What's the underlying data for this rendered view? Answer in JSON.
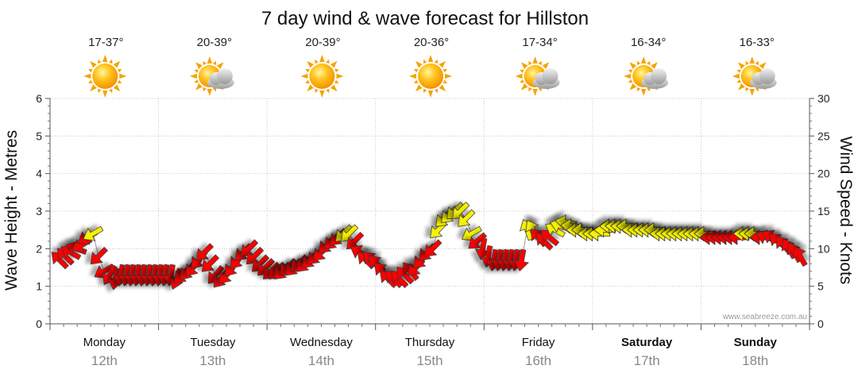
{
  "chart_data": {
    "type": "line",
    "title": "7 day wind & wave forecast for Hillston",
    "ylabel_left": "Wave Height - Metres",
    "ylabel_right": "Wind Speed - Knots",
    "ylim_left": [
      0,
      6
    ],
    "ylim_right": [
      0,
      30
    ],
    "yticks_left": [
      "0",
      "1",
      "2",
      "3",
      "4",
      "5",
      "6"
    ],
    "yticks_right": [
      "0",
      "5",
      "10",
      "15",
      "20",
      "25",
      "30"
    ],
    "grid": true,
    "credit": "www.seabreeze.com.au",
    "days": [
      {
        "name": "Monday",
        "date": "12th",
        "temp": "17-37°",
        "icon": "sun-icon",
        "bold": false
      },
      {
        "name": "Tuesday",
        "date": "13th",
        "temp": "20-39°",
        "icon": "sun-cloud-icon",
        "bold": false
      },
      {
        "name": "Wednesday",
        "date": "14th",
        "temp": "20-39°",
        "icon": "sun-icon",
        "bold": false
      },
      {
        "name": "Thursday",
        "date": "15th",
        "temp": "20-36°",
        "icon": "sun-icon",
        "bold": false
      },
      {
        "name": "Friday",
        "date": "16th",
        "temp": "17-34°",
        "icon": "sun-cloud-icon",
        "bold": false
      },
      {
        "name": "Saturday",
        "date": "17th",
        "temp": "16-34°",
        "icon": "sun-cloud-icon",
        "bold": true
      },
      {
        "name": "Sunday",
        "date": "18th",
        "temp": "16-33°",
        "icon": "sun-cloud-icon",
        "bold": true
      }
    ],
    "wind_speed_knots": [
      8.5,
      9.0,
      9.5,
      10.0,
      10.5,
      11.5,
      12.0,
      9.0,
      7.0,
      6.5,
      6.0,
      6.5,
      6.5,
      6.5,
      6.5,
      6.5,
      6.5,
      6.5,
      6.5,
      6.5,
      6.5,
      6.0,
      6.5,
      7.0,
      7.5,
      8.5,
      9.5,
      8.0,
      6.5,
      6.0,
      6.5,
      7.5,
      8.5,
      9.5,
      10.0,
      9.0,
      8.0,
      7.5,
      7.0,
      7.0,
      7.0,
      7.5,
      7.5,
      8.0,
      8.0,
      8.5,
      9.0,
      9.5,
      10.5,
      11.0,
      11.5,
      12.0,
      12.0,
      11.0,
      9.5,
      8.5,
      8.5,
      8.0,
      7.0,
      6.0,
      6.0,
      6.0,
      6.5,
      7.0,
      7.5,
      8.5,
      9.5,
      10.0,
      12.5,
      14.0,
      14.5,
      15.0,
      15.0,
      14.0,
      12.0,
      11.0,
      10.0,
      9.0,
      8.5,
      8.5,
      8.5,
      8.5,
      8.5,
      8.5,
      12.5,
      12.5,
      11.5,
      11.0,
      11.5,
      12.5,
      13.0,
      13.5,
      13.0,
      12.5,
      12.5,
      12.0,
      12.0,
      12.0,
      12.5,
      13.0,
      13.0,
      13.0,
      13.0,
      12.5,
      12.5,
      12.5,
      12.5,
      12.5,
      12.0,
      12.0,
      12.0,
      12.0,
      12.0,
      12.0,
      12.0,
      12.0,
      12.0,
      11.5,
      11.5,
      11.5,
      11.5,
      11.5,
      11.5,
      12.0,
      12.0,
      12.0,
      11.5,
      11.5,
      11.5,
      11.0,
      10.5,
      10.0,
      9.5,
      9.0
    ],
    "wind_dir_deg": [
      135,
      135,
      120,
      110,
      60,
      60,
      60,
      45,
      60,
      30,
      10,
      10,
      10,
      10,
      10,
      10,
      10,
      10,
      10,
      10,
      10,
      20,
      45,
      40,
      40,
      40,
      45,
      45,
      40,
      40,
      40,
      40,
      40,
      45,
      45,
      45,
      45,
      45,
      45,
      45,
      45,
      45,
      45,
      45,
      45,
      45,
      45,
      45,
      45,
      45,
      45,
      45,
      45,
      45,
      120,
      135,
      135,
      135,
      135,
      135,
      135,
      135,
      135,
      140,
      45,
      45,
      45,
      45,
      45,
      45,
      45,
      45,
      45,
      45,
      60,
      50,
      10,
      10,
      10,
      10,
      10,
      10,
      10,
      10,
      160,
      150,
      140,
      135,
      130,
      120,
      110,
      100,
      95,
      90,
      90,
      90,
      90,
      90,
      90,
      90,
      90,
      90,
      90,
      90,
      90,
      90,
      90,
      90,
      90,
      90,
      90,
      90,
      90,
      90,
      90,
      90,
      90,
      90,
      90,
      90,
      90,
      90,
      90,
      90,
      90,
      90,
      90,
      110,
      120,
      130,
      140,
      150,
      150,
      150
    ]
  }
}
